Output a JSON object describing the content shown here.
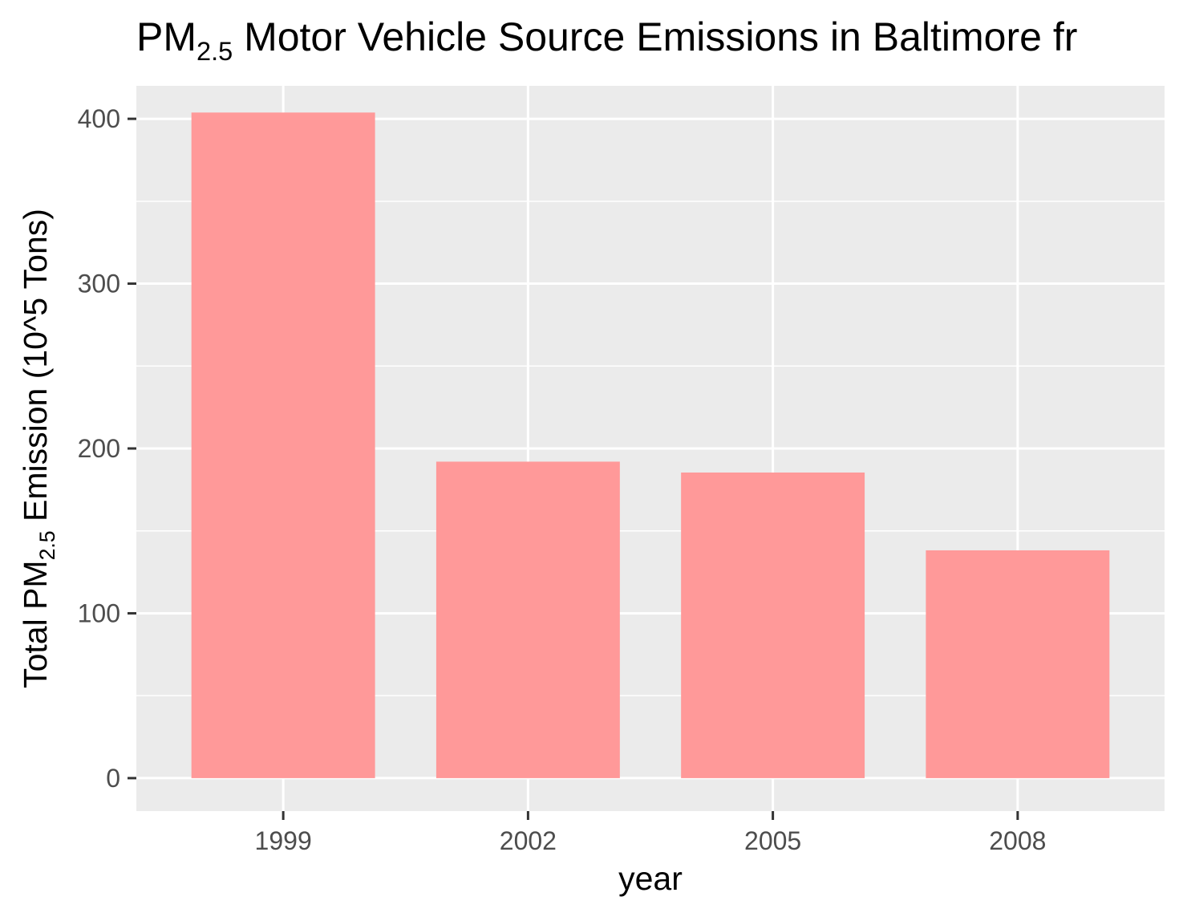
{
  "chart_data": {
    "type": "bar",
    "title": {
      "prefix": "PM",
      "subscript": "2.5",
      "suffix": " Motor Vehicle Source Emissions in Baltimore fr"
    },
    "xlabel": "year",
    "ylabel": {
      "prefix": "Total PM",
      "subscript": "2.5",
      "suffix": " Emission (10^5 Tons)"
    },
    "categories": [
      "1999",
      "2002",
      "2005",
      "2008"
    ],
    "values": [
      403.8,
      192.0,
      185.4,
      138.2
    ],
    "yticks": [
      0,
      100,
      200,
      300,
      400
    ],
    "ylim": [
      -20,
      420
    ],
    "grid": true,
    "legend": "none",
    "bar_color": "#ff9999",
    "panel_background": "#ebebeb",
    "grid_color": "#ffffff"
  }
}
